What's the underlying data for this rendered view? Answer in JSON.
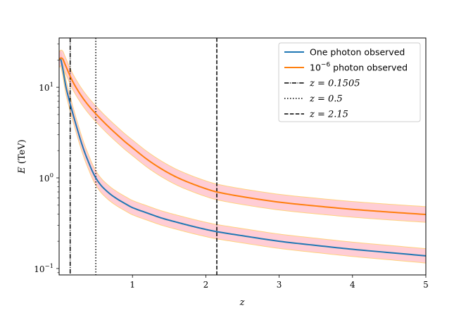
{
  "chart_data": {
    "type": "line",
    "title": "",
    "xlabel": "z",
    "ylabel": "E (TeV)",
    "xscale": "linear",
    "yscale": "log",
    "xlim": [
      0.0,
      5.0
    ],
    "ylim": [
      0.085,
      35.0
    ],
    "x_ticks": [
      {
        "value": 1,
        "label": "1"
      },
      {
        "value": 2,
        "label": "2"
      },
      {
        "value": 3,
        "label": "3"
      },
      {
        "value": 4,
        "label": "4"
      },
      {
        "value": 5,
        "label": "5"
      }
    ],
    "y_ticks": [
      {
        "value": 0.1,
        "base": "10",
        "exp": "−1"
      },
      {
        "value": 1,
        "base": "10",
        "exp": "0"
      },
      {
        "value": 10,
        "base": "10",
        "exp": "1"
      }
    ],
    "series": [
      {
        "name": "One photon observed",
        "color": "#1f77b4",
        "band_color": "#ffc0cb",
        "band_edge_color": "#ffd27f",
        "band_factor": 1.2,
        "x": [
          0.0,
          0.02,
          0.05,
          0.08,
          0.1,
          0.15,
          0.2,
          0.25,
          0.3,
          0.35,
          0.4,
          0.45,
          0.5,
          0.55,
          0.6,
          0.7,
          0.8,
          0.9,
          1.0,
          1.2,
          1.4,
          1.6,
          1.8,
          2.0,
          2.15,
          2.5,
          3.0,
          3.5,
          4.0,
          4.5,
          5.0
        ],
        "values": [
          20.0,
          20.5,
          16.0,
          11.5,
          9.5,
          6.6,
          4.7,
          3.4,
          2.5,
          1.9,
          1.5,
          1.2,
          1.0,
          0.87,
          0.78,
          0.66,
          0.58,
          0.52,
          0.47,
          0.41,
          0.36,
          0.325,
          0.295,
          0.27,
          0.255,
          0.23,
          0.2,
          0.18,
          0.163,
          0.15,
          0.138
        ]
      },
      {
        "name": "10^-6 photon observed",
        "label_base": "10",
        "label_exp": "−6",
        "label_rest": " photon observed",
        "color": "#ff7f0e",
        "band_color": "#ffc0cb",
        "band_edge_color": "#ffd27f",
        "band_factor": 1.22,
        "x": [
          0.0,
          0.02,
          0.05,
          0.08,
          0.1,
          0.15,
          0.2,
          0.3,
          0.4,
          0.5,
          0.6,
          0.7,
          0.8,
          0.9,
          1.0,
          1.2,
          1.4,
          1.6,
          1.8,
          2.0,
          2.15,
          2.5,
          3.0,
          3.5,
          4.0,
          4.5,
          5.0
        ],
        "values": [
          20.0,
          21.0,
          20.5,
          18.0,
          16.5,
          13.3,
          11.0,
          8.1,
          6.3,
          5.1,
          4.2,
          3.5,
          2.95,
          2.5,
          2.15,
          1.6,
          1.25,
          1.02,
          0.87,
          0.76,
          0.7,
          0.62,
          0.54,
          0.49,
          0.45,
          0.42,
          0.395
        ]
      }
    ],
    "vlines": [
      {
        "x": 0.1505,
        "style": "dashdot",
        "label": "z = 0.1505"
      },
      {
        "x": 0.5,
        "style": "dotted",
        "label": "z = 0.5"
      },
      {
        "x": 2.15,
        "style": "dashed",
        "label": "z = 2.15"
      }
    ],
    "legend": {
      "location": "top-right"
    }
  }
}
